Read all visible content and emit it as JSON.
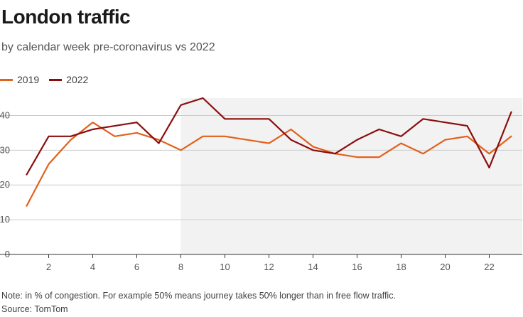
{
  "header": {
    "title": "London traffic",
    "subtitle": "by calendar week pre-coronavirus vs 2022"
  },
  "legend": [
    {
      "label": "2019",
      "color": "#e2611b"
    },
    {
      "label": "2022",
      "color": "#8b0e0e"
    }
  ],
  "footer": {
    "note": "Note: in % of congestion. For example 50% means journey takes 50% longer than in free flow traffic.",
    "source": "Source: TomTom"
  },
  "colors": {
    "shade": "#f2f2f2",
    "grid": "#cccccc",
    "axis": "#333333"
  },
  "chart_data": {
    "type": "line",
    "title": "London traffic",
    "subtitle": "by calendar week pre-coronavirus vs 2022",
    "xlabel": "",
    "ylabel": "",
    "x": [
      1,
      2,
      3,
      4,
      5,
      6,
      7,
      8,
      9,
      10,
      11,
      12,
      13,
      14,
      15,
      16,
      17,
      18,
      19,
      20,
      21,
      22,
      23
    ],
    "xticks": [
      2,
      4,
      6,
      8,
      10,
      12,
      14,
      16,
      18,
      20,
      22
    ],
    "yticks": [
      0,
      10,
      20,
      30,
      40
    ],
    "xlim": [
      0.5,
      23.5
    ],
    "ylim": [
      0,
      45
    ],
    "shaded_from_x": 8,
    "series": [
      {
        "name": "2019",
        "color": "#e2611b",
        "values": [
          14,
          26,
          33,
          38,
          34,
          35,
          33,
          30,
          34,
          34,
          33,
          32,
          36,
          31,
          29,
          28,
          28,
          32,
          29,
          33,
          34,
          29,
          34
        ]
      },
      {
        "name": "2022",
        "color": "#8b0e0e",
        "values": [
          23,
          34,
          34,
          36,
          37,
          38,
          32,
          43,
          45,
          39,
          39,
          39,
          33,
          30,
          29,
          33,
          36,
          34,
          39,
          38,
          37,
          25,
          41
        ]
      }
    ]
  }
}
